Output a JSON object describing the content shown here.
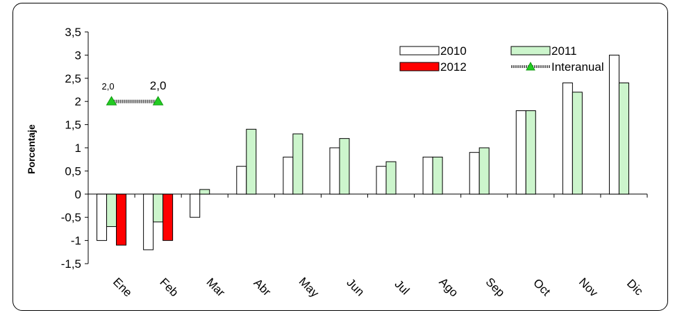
{
  "chart_data": {
    "type": "bar",
    "ylabel": "Porcentaje",
    "xlabel": "",
    "ylim": [
      -1.5,
      3.5
    ],
    "yticks": [
      "3,5",
      "3",
      "2,5",
      "2",
      "1,5",
      "1",
      "0,5",
      "0",
      "-0,5",
      "-1",
      "-1,5"
    ],
    "categories": [
      "Ene",
      "Feb",
      "Mar",
      "Abr",
      "May",
      "Jun",
      "Jul",
      "Ago",
      "Sep",
      "Oct",
      "Nov",
      "Dic"
    ],
    "series": [
      {
        "name": "2010",
        "color": "#ffffff",
        "values": [
          -1.0,
          -1.2,
          -0.5,
          0.6,
          0.8,
          1.0,
          0.6,
          0.8,
          0.9,
          1.8,
          2.4,
          3.0
        ]
      },
      {
        "name": "2011",
        "color": "#ccf5cc",
        "values": [
          -0.7,
          -0.6,
          0.1,
          1.4,
          1.3,
          1.2,
          0.7,
          0.8,
          1.0,
          1.8,
          2.2,
          2.4
        ]
      },
      {
        "name": "2012",
        "color": "#ff0000",
        "values": [
          -1.1,
          -1.0,
          null,
          null,
          null,
          null,
          null,
          null,
          null,
          null,
          null,
          null
        ]
      }
    ],
    "line_series": {
      "name": "Interanual",
      "values": [
        2.0,
        2.0
      ],
      "labels": [
        "2,0",
        "2,0"
      ],
      "marker_color": "#22cc22"
    },
    "legend": {
      "position": "top-right"
    },
    "grid": false
  }
}
